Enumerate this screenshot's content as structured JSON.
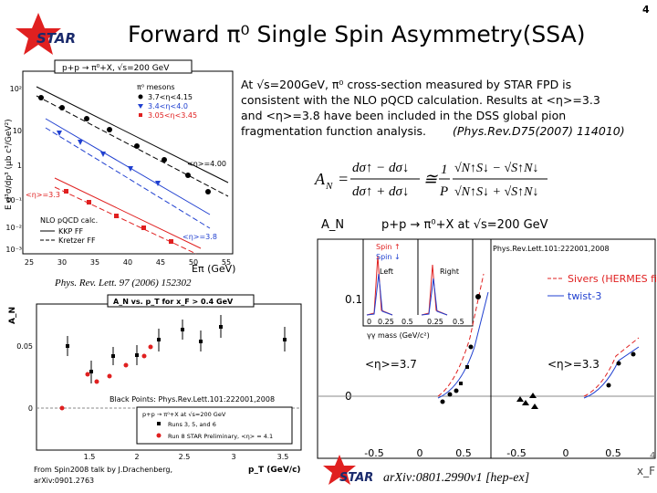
{
  "page_number": "4",
  "logo": "STAR",
  "title": "Forward π⁰ Single Spin Asymmetry(SSA)",
  "description": {
    "lines": [
      "At √s=200GeV, π⁰ cross-section measured by STAR FPD is",
      "consistent with the NLO pQCD calculation. Results at <η>=3.3",
      "and <η>=3.8 have been included in the DSS global pion",
      "fragmentation function analysis."
    ],
    "reference": "(Phys.Rev.D75(2007) 114010)"
  },
  "formula": {
    "lhs": "A",
    "lhs_sub": "N",
    "eq": "=",
    "num": "dσ↑ − dσ↓",
    "den": "dσ↑ + dσ↓",
    "approx": "≅",
    "one": "1",
    "p": "P",
    "num2": "√N↑S↓ − √S↑N↓",
    "den2": "√N↑S↓ + √S↑N↓"
  },
  "cross_section_plot": {
    "title": "p+p → π⁰+X, √s=200 GeV",
    "y_label": "E d³σ/dp³ (μb c³/GeV²)",
    "y_ticks": [
      "10²",
      "10",
      "1",
      "10⁻¹",
      "10⁻²",
      "10⁻³"
    ],
    "x_ticks": [
      "25",
      "30",
      "35",
      "40",
      "45",
      "50",
      "55"
    ],
    "x_label": "Eπ (GeV)",
    "legend": [
      "π⁰ mesons",
      "3.7<η<4.15",
      "3.4<η<4.0",
      "3.05<η<3.45"
    ],
    "annotations": [
      "<η>=4.00",
      "<η>=3.3",
      "<η>=3.8"
    ],
    "theory_legend": [
      "NLO pQCD calc.",
      "KKP FF",
      "Kretzer FF"
    ],
    "citation": "Phys. Rev. Lett. 97 (2006) 152302"
  },
  "pt_plot": {
    "title": "A_N vs. p_T for x_F > 0.4 GeV",
    "y_label": "A_N",
    "y_ticks": [
      "0.05",
      "0"
    ],
    "x_ticks": [
      "1.5",
      "2",
      "2.5",
      "3",
      "3.5"
    ],
    "x_label": "p_T (GeV/c)",
    "note": "Black Points: Phys.Rev.Lett.101:222001,2008",
    "legend_title": "p+p → π⁰+X at √s=200 GeV",
    "legend": [
      "Runs 3, 5, and 6",
      "Run 8 STAR Preliminary, <η> = 4.1"
    ],
    "source": [
      "From Spin2008 talk by J.Drachenberg,",
      "arXiv:0901.2763"
    ]
  },
  "xf_plot": {
    "y_label": "A_N",
    "title": "p+p → π⁰+X at √s=200 GeV",
    "citation": "Phys.Rev.Lett.101:222001,2008",
    "inset": [
      "Spin ↑",
      "Spin ↓",
      "Left",
      "Right",
      "γγ mass (GeV/c²)"
    ],
    "inset_ticks": [
      "0",
      "0.25",
      "0.5",
      "0.25",
      "0.5"
    ],
    "y_ticks": [
      "0.1",
      "0"
    ],
    "legend": [
      "Sivers (HERMES fit)",
      "twist-3"
    ],
    "annotations": [
      "<η>=3.7",
      "<η>=3.3"
    ],
    "x_ticks": [
      "-0.5",
      "0",
      "0.5",
      "-0.5",
      "0",
      "0.5"
    ],
    "x_label": "x_F",
    "logo": "STAR",
    "arxiv": "arXiv:0801.2990v1 [hep-ex]"
  }
}
